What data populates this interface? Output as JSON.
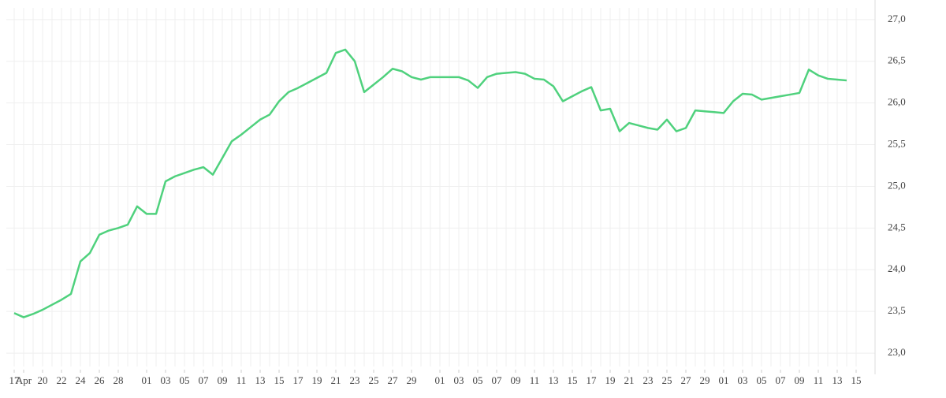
{
  "chart_data": {
    "type": "line",
    "categories": [
      "17",
      "Apr",
      null,
      "20",
      null,
      "22",
      null,
      "24",
      null,
      "26",
      null,
      "28",
      null,
      null,
      "01",
      null,
      "03",
      null,
      "05",
      null,
      "07",
      null,
      "09",
      null,
      "11",
      null,
      "13",
      null,
      "15",
      null,
      "17",
      null,
      "19",
      null,
      "21",
      null,
      "23",
      null,
      "25",
      null,
      "27",
      null,
      "29",
      null,
      null,
      "01",
      null,
      "03",
      null,
      "05",
      null,
      "07",
      null,
      "09",
      null,
      "11",
      null,
      "13",
      null,
      "15",
      null,
      "17",
      null,
      "19",
      null,
      "21",
      null,
      "23",
      null,
      "25",
      null,
      "27",
      null,
      "29",
      null,
      "01",
      null,
      "03",
      null,
      "05",
      null,
      "07",
      null,
      "09",
      null,
      "11",
      null,
      "13",
      null,
      "15"
    ],
    "series": [
      {
        "color": "#4fd17d",
        "values": [
          23.48,
          23.43,
          23.47,
          23.52,
          23.58,
          23.64,
          23.71,
          24.1,
          24.2,
          24.42,
          24.47,
          24.5,
          24.54,
          24.76,
          24.67,
          24.67,
          25.06,
          25.12,
          25.16,
          25.2,
          25.23,
          25.14,
          25.34,
          25.54,
          25.62,
          25.71,
          25.8,
          25.86,
          26.02,
          26.13,
          26.18,
          26.24,
          26.3,
          26.36,
          26.6,
          26.64,
          26.5,
          26.13,
          26.22,
          26.31,
          26.41,
          26.38,
          26.31,
          26.28,
          26.31,
          26.31,
          26.31,
          26.31,
          26.27,
          26.18,
          26.31,
          26.35,
          26.36,
          26.37,
          26.35,
          26.29,
          26.28,
          26.2,
          26.02,
          26.08,
          26.14,
          26.19,
          25.91,
          25.93,
          25.66,
          25.76,
          25.73,
          25.7,
          25.68,
          25.8,
          25.66,
          25.7,
          25.91,
          25.9,
          25.89,
          25.88,
          26.02,
          26.11,
          26.1,
          26.04,
          26.06,
          26.08,
          26.1,
          26.12,
          26.4,
          26.33,
          26.29,
          26.28,
          26.27,
          null
        ]
      }
    ],
    "ylim": [
      22.84,
      27.14
    ],
    "yticks": [
      {
        "value": 23.0,
        "label": "23,0"
      },
      {
        "value": 23.5,
        "label": "23,5"
      },
      {
        "value": 24.0,
        "label": "24,0"
      },
      {
        "value": 24.5,
        "label": "24,5"
      },
      {
        "value": 25.0,
        "label": "25,0"
      },
      {
        "value": 25.5,
        "label": "25,5"
      },
      {
        "value": 26.0,
        "label": "26,0"
      },
      {
        "value": 26.5,
        "label": "26,5"
      },
      {
        "value": 27.0,
        "label": "27,0"
      }
    ],
    "grid": true
  }
}
